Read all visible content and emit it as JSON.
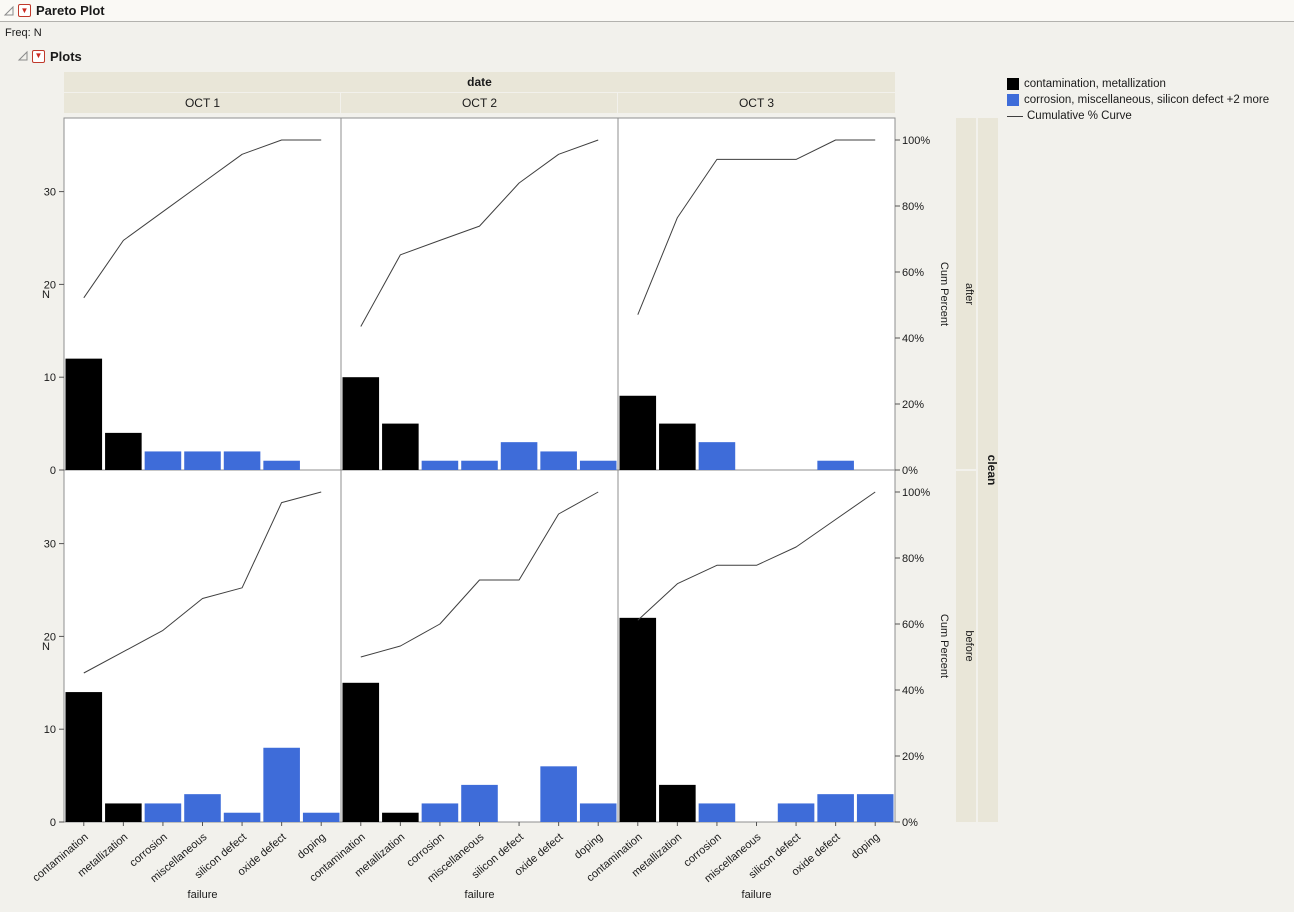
{
  "outline": {
    "pareto_title": "Pareto Plot",
    "freq": "Freq: N",
    "plots_title": "Plots"
  },
  "icons": {
    "hotspot_glyph": "▼"
  },
  "legend": {
    "items": [
      {
        "type": "swatch",
        "color": "#000000",
        "label": "contamination, metallization"
      },
      {
        "type": "swatch",
        "color": "#3e6cd9",
        "label": "corrosion, miscellaneous, silicon defect +2 more"
      },
      {
        "type": "line",
        "color": "#3f3f3f",
        "label": "Cumulative % Curve"
      }
    ]
  },
  "chart_data": {
    "type": "bar",
    "variant": "pareto-small-multiples",
    "title": "Pareto Plot",
    "column_group": {
      "label": "date",
      "levels": [
        "OCT 1",
        "OCT 2",
        "OCT 3"
      ]
    },
    "row_group": {
      "label": "clean",
      "levels": [
        "after",
        "before"
      ]
    },
    "categories": [
      "contamination",
      "metallization",
      "corrosion",
      "miscellaneous",
      "silicon defect",
      "oxide defect",
      "doping"
    ],
    "category_colors": [
      "#000000",
      "#000000",
      "#3e6cd9",
      "#3e6cd9",
      "#3e6cd9",
      "#3e6cd9",
      "#3e6cd9"
    ],
    "curve_color": "#3f3f3f",
    "band_color": "#e9e6d8",
    "xlabel": "failure",
    "ylabel_left": "N",
    "ylabel_right": "Cum Percent",
    "y_ticks": [
      0,
      10,
      20,
      30
    ],
    "ylim": [
      0,
      37.5
    ],
    "percent_ticks": [
      "0%",
      "20%",
      "40%",
      "60%",
      "80%",
      "100%"
    ],
    "percent_lim": [
      0,
      100
    ],
    "grid": false,
    "legend_position": "top-right",
    "curve": "cumulative percent of panel total",
    "panels": [
      {
        "row": "after",
        "col": "OCT 1",
        "values": [
          12,
          4,
          2,
          2,
          2,
          1,
          0
        ]
      },
      {
        "row": "after",
        "col": "OCT 2",
        "values": [
          10,
          5,
          1,
          1,
          3,
          2,
          1
        ]
      },
      {
        "row": "after",
        "col": "OCT 3",
        "values": [
          8,
          5,
          3,
          0,
          0,
          1,
          0
        ]
      },
      {
        "row": "before",
        "col": "OCT 1",
        "values": [
          14,
          2,
          2,
          3,
          1,
          8,
          1
        ]
      },
      {
        "row": "before",
        "col": "OCT 2",
        "values": [
          15,
          1,
          2,
          4,
          0,
          6,
          2
        ]
      },
      {
        "row": "before",
        "col": "OCT 3",
        "values": [
          22,
          4,
          2,
          0,
          2,
          3,
          3
        ]
      }
    ]
  }
}
